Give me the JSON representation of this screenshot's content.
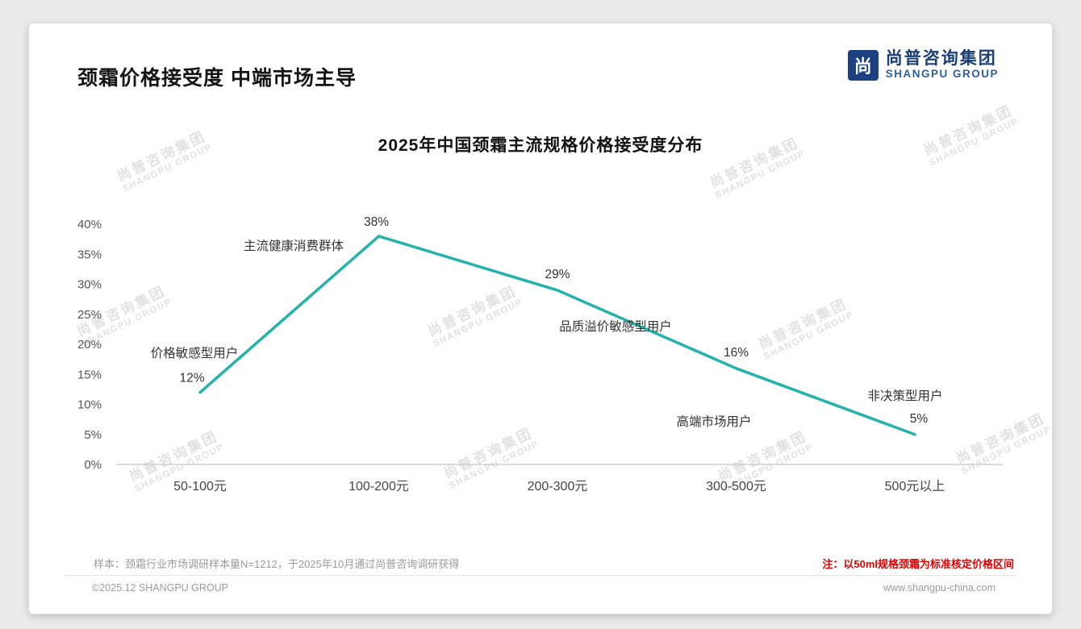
{
  "page": {
    "title": "颈霜价格接受度 中端市场主导",
    "logo": {
      "cn": "尚普咨询集团",
      "en": "SHANGPU GROUP",
      "icon_char": "尚"
    }
  },
  "chart_data": {
    "type": "line",
    "title": "2025年中国颈霜主流规格价格接受度分布",
    "categories": [
      "50-100元",
      "100-200元",
      "200-300元",
      "300-500元",
      "500元以上"
    ],
    "values": [
      12,
      38,
      29,
      16,
      5
    ],
    "data_labels": [
      "12%",
      "38%",
      "29%",
      "16%",
      "5%"
    ],
    "annotations": [
      "价格敏感型用户",
      "主流健康消费群体",
      "品质溢价敏感型用户",
      "高端市场用户",
      "非决策型用户"
    ],
    "xlabel": "",
    "ylabel": "",
    "ylim": [
      0,
      40
    ],
    "ytick_step": 5,
    "yticks": [
      "0%",
      "5%",
      "10%",
      "15%",
      "20%",
      "25%",
      "30%",
      "35%",
      "40%"
    ],
    "line_color": "#23b3ab",
    "grid": false,
    "legend_position": "none"
  },
  "footnotes": {
    "sample": "样本：颈霜行业市场调研样本量N=1212，于2025年10月通过尚普咨询调研获得",
    "note": "注：以50ml规格颈霜为标准核定价格区间"
  },
  "footer": {
    "copyright": "©2025.12 SHANGPU GROUP",
    "website": "www.shangpu-china.com"
  },
  "watermark": {
    "cn": "尚普咨询集团",
    "en": "SHANGPU GROUP"
  }
}
